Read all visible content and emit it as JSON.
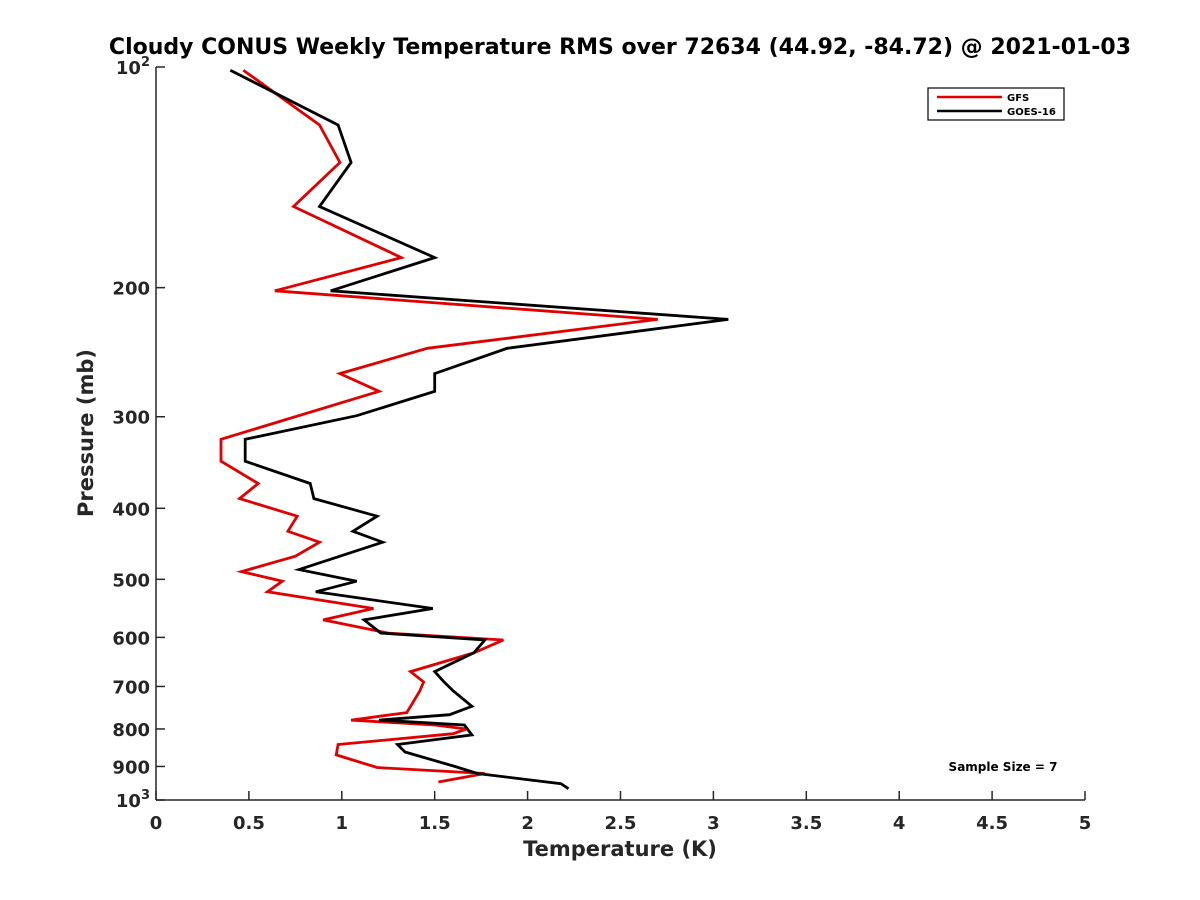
{
  "chart_data": {
    "type": "line",
    "title": "Cloudy CONUS Weekly Temperature RMS over 72634 (44.92, -84.72) @ 2021-01-03",
    "xlabel": "Temperature (K)",
    "ylabel": "Pressure (mb)",
    "xlim": [
      0,
      5
    ],
    "ylim": [
      100,
      1000
    ],
    "y_scale": "log",
    "y_reversed": true,
    "grid": false,
    "legend_position": "top-right",
    "x_ticks": [
      "0",
      "0.5",
      "1",
      "1.5",
      "2",
      "2.5",
      "3",
      "3.5",
      "4",
      "4.5",
      "5"
    ],
    "y_ticks": [
      {
        "value": 100,
        "base": "10",
        "exp": "2"
      },
      {
        "value": 200,
        "label": "200"
      },
      {
        "value": 300,
        "label": "300"
      },
      {
        "value": 400,
        "label": "400"
      },
      {
        "value": 500,
        "label": "500"
      },
      {
        "value": 600,
        "label": "600"
      },
      {
        "value": 700,
        "label": "700"
      },
      {
        "value": 800,
        "label": "800"
      },
      {
        "value": 900,
        "label": "900"
      },
      {
        "value": 1000,
        "base": "10",
        "exp": "3"
      }
    ],
    "annotation": "Sample Size = 7",
    "series": [
      {
        "name": "GFS",
        "color": "#e00000",
        "points": [
          [
            0.47,
            101
          ],
          [
            0.88,
            120
          ],
          [
            0.99,
            135
          ],
          [
            0.74,
            155
          ],
          [
            1.32,
            182
          ],
          [
            0.64,
            202
          ],
          [
            2.7,
            221
          ],
          [
            1.46,
            242
          ],
          [
            0.99,
            262
          ],
          [
            1.2,
            277
          ],
          [
            0.35,
            322
          ],
          [
            0.35,
            345
          ],
          [
            0.55,
            370
          ],
          [
            0.45,
            388
          ],
          [
            0.76,
            410
          ],
          [
            0.71,
            430
          ],
          [
            0.88,
            445
          ],
          [
            0.75,
            465
          ],
          [
            0.46,
            488
          ],
          [
            0.68,
            503
          ],
          [
            0.6,
            520
          ],
          [
            1.17,
            548
          ],
          [
            0.9,
            568
          ],
          [
            1.25,
            592
          ],
          [
            1.87,
            605
          ],
          [
            1.71,
            630
          ],
          [
            1.37,
            668
          ],
          [
            1.44,
            690
          ],
          [
            1.42,
            710
          ],
          [
            1.35,
            760
          ],
          [
            1.05,
            778
          ],
          [
            1.5,
            790
          ],
          [
            1.67,
            800
          ],
          [
            1.6,
            812
          ],
          [
            0.98,
            840
          ],
          [
            0.97,
            868
          ],
          [
            1.19,
            903
          ],
          [
            1.77,
            920
          ],
          [
            1.52,
            945
          ]
        ]
      },
      {
        "name": "GOES-16",
        "color": "#000000",
        "points": [
          [
            0.4,
            101
          ],
          [
            0.98,
            120
          ],
          [
            1.05,
            135
          ],
          [
            0.88,
            155
          ],
          [
            1.5,
            182
          ],
          [
            0.94,
            202
          ],
          [
            3.08,
            221
          ],
          [
            1.89,
            242
          ],
          [
            1.5,
            262
          ],
          [
            1.5,
            277
          ],
          [
            1.08,
            299
          ],
          [
            0.48,
            322
          ],
          [
            0.48,
            345
          ],
          [
            0.83,
            370
          ],
          [
            0.85,
            388
          ],
          [
            1.19,
            410
          ],
          [
            1.06,
            430
          ],
          [
            1.22,
            445
          ],
          [
            0.77,
            485
          ],
          [
            1.08,
            503
          ],
          [
            0.86,
            520
          ],
          [
            1.49,
            548
          ],
          [
            1.12,
            568
          ],
          [
            1.21,
            592
          ],
          [
            1.77,
            605
          ],
          [
            1.71,
            630
          ],
          [
            1.5,
            668
          ],
          [
            1.55,
            690
          ],
          [
            1.6,
            710
          ],
          [
            1.7,
            745
          ],
          [
            1.58,
            765
          ],
          [
            1.2,
            778
          ],
          [
            1.66,
            790
          ],
          [
            1.7,
            815
          ],
          [
            1.3,
            840
          ],
          [
            1.34,
            860
          ],
          [
            1.61,
            900
          ],
          [
            1.73,
            920
          ],
          [
            2.18,
            950
          ],
          [
            2.22,
            965
          ]
        ]
      }
    ]
  }
}
